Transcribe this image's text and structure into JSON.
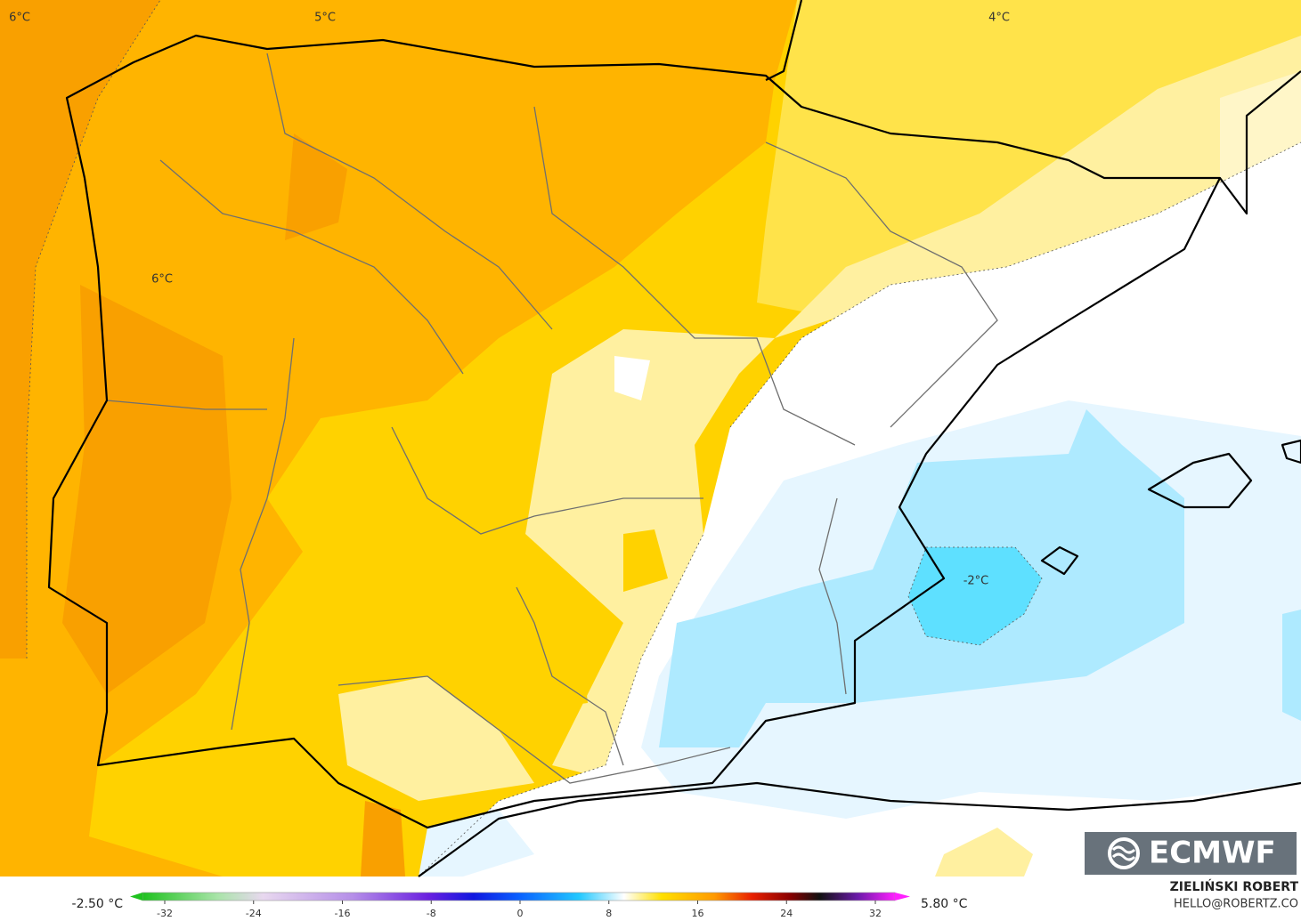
{
  "map": {
    "contour_labels": [
      "6°C",
      "5°C",
      "4°C",
      "6°C",
      "-2°C"
    ]
  },
  "colorbar": {
    "min_label": "-2.50 °C",
    "max_label": "5.80 °C",
    "ticks": [
      -32,
      -24,
      -16,
      -8,
      0,
      8,
      16,
      24,
      32
    ]
  },
  "credits": {
    "author": "ZIELIŃSKI ROBERT",
    "contact": "HELLO@ROBERTZ.CO"
  },
  "logo": "ECMWF"
}
